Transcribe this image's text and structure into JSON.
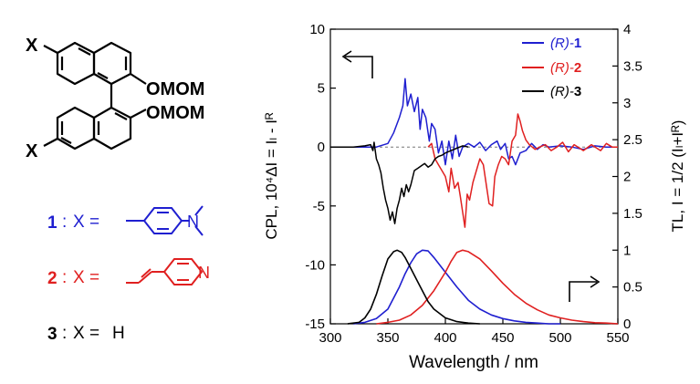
{
  "molecule": {
    "substituent_label": "X",
    "top_group": "OMOM",
    "bottom_group": "OMOM"
  },
  "compounds": [
    {
      "number": "1",
      "prefix": ":",
      "x_eq": "X =",
      "color": "#1f1fd0",
      "substituent": "4-dimethylaminophenyl"
    },
    {
      "number": "2",
      "prefix": ":",
      "x_eq": "X =",
      "color": "#e02020",
      "substituent": "(E)-2-(4-pyridyl)vinyl",
      "ring_atom": "N"
    },
    {
      "number": "3",
      "prefix": ":",
      "x_eq": "X =",
      "color": "#000000",
      "substituent_text": "H"
    }
  ],
  "chart": {
    "xlabel": "Wavelength / nm",
    "ylabel_left": "CPL, 10⁴ΔI = Iₗ - Iᴿ",
    "ylabel_right": "TL, I = 1/2 (Iₗ+Iᴿ)",
    "legend": [
      {
        "prefix": "(R)-",
        "num": "1",
        "color": "#1f1fd0"
      },
      {
        "prefix": "(R)-",
        "num": "2",
        "color": "#e02020"
      },
      {
        "prefix": "(R)-",
        "num": "3",
        "color": "#000000"
      }
    ]
  },
  "chart_data": {
    "type": "line",
    "x_range": [
      300,
      550
    ],
    "x_ticks": [
      300,
      350,
      400,
      450,
      500,
      550
    ],
    "y_left_range": [
      -15,
      10
    ],
    "y_left_ticks": [
      -15,
      -10,
      -5,
      0,
      5,
      10
    ],
    "y_right_range": [
      0,
      4
    ],
    "y_right_ticks": [
      0,
      0.5,
      1,
      1.5,
      2,
      2.5,
      3,
      3.5,
      4
    ],
    "cpl_axis": "left",
    "tl_axis": "right",
    "series": [
      {
        "name": "(R)-1",
        "color": "#1f1fd0",
        "cpl": [
          [
            300,
            0
          ],
          [
            320,
            0
          ],
          [
            340,
            0
          ],
          [
            350,
            0.3
          ],
          [
            355,
            1.2
          ],
          [
            360,
            2.5
          ],
          [
            363,
            3.5
          ],
          [
            365,
            5.8
          ],
          [
            367,
            3.5
          ],
          [
            370,
            4.5
          ],
          [
            373,
            3
          ],
          [
            376,
            4.2
          ],
          [
            378,
            1.5
          ],
          [
            380,
            3.2
          ],
          [
            383,
            2.5
          ],
          [
            386,
            0.5
          ],
          [
            388,
            2
          ],
          [
            391,
            1.5
          ],
          [
            394,
            -0.5
          ],
          [
            397,
            0.5
          ],
          [
            400,
            -1.5
          ],
          [
            403,
            0.5
          ],
          [
            406,
            -1
          ],
          [
            409,
            1
          ],
          [
            412,
            -0.8
          ],
          [
            415,
            0
          ],
          [
            420,
            0.3
          ],
          [
            425,
            0
          ],
          [
            430,
            0.4
          ],
          [
            435,
            -0.3
          ],
          [
            440,
            0.2
          ],
          [
            445,
            0.5
          ],
          [
            448,
            -0.2
          ],
          [
            452,
            0.3
          ],
          [
            455,
            -1
          ],
          [
            458,
            -0.8
          ],
          [
            461,
            -1.5
          ],
          [
            465,
            -0.5
          ],
          [
            470,
            -0.3
          ],
          [
            475,
            0.3
          ],
          [
            480,
            -0.2
          ],
          [
            485,
            0.2
          ],
          [
            490,
            0
          ],
          [
            500,
            0.1
          ],
          [
            510,
            0
          ],
          [
            520,
            -0.2
          ],
          [
            530,
            0.1
          ],
          [
            540,
            0
          ],
          [
            550,
            0
          ]
        ],
        "tl": [
          [
            320,
            0
          ],
          [
            330,
            0.02
          ],
          [
            340,
            0.07
          ],
          [
            350,
            0.2
          ],
          [
            355,
            0.35
          ],
          [
            360,
            0.5
          ],
          [
            365,
            0.68
          ],
          [
            370,
            0.83
          ],
          [
            375,
            0.95
          ],
          [
            380,
            1.0
          ],
          [
            385,
            0.99
          ],
          [
            390,
            0.9
          ],
          [
            395,
            0.8
          ],
          [
            400,
            0.7
          ],
          [
            410,
            0.5
          ],
          [
            420,
            0.32
          ],
          [
            430,
            0.2
          ],
          [
            440,
            0.12
          ],
          [
            450,
            0.07
          ],
          [
            460,
            0.04
          ],
          [
            470,
            0.02
          ],
          [
            480,
            0.01
          ],
          [
            490,
            0
          ],
          [
            500,
            0
          ]
        ]
      },
      {
        "name": "(R)-2",
        "color": "#e02020",
        "cpl": [
          [
            385,
            0
          ],
          [
            388,
            0.3
          ],
          [
            391,
            -1
          ],
          [
            394,
            -1.5
          ],
          [
            397,
            -2
          ],
          [
            400,
            -2.5
          ],
          [
            403,
            -3.8
          ],
          [
            405,
            -1.8
          ],
          [
            408,
            -3.5
          ],
          [
            411,
            -3
          ],
          [
            413,
            -4.2
          ],
          [
            415,
            -5.5
          ],
          [
            417,
            -6.8
          ],
          [
            419,
            -4
          ],
          [
            421,
            -4.5
          ],
          [
            424,
            -3
          ],
          [
            427,
            -2
          ],
          [
            430,
            -1
          ],
          [
            433,
            -1.5
          ],
          [
            436,
            -3.5
          ],
          [
            438,
            -4.8
          ],
          [
            441,
            -5
          ],
          [
            443,
            -2.5
          ],
          [
            446,
            -1.5
          ],
          [
            449,
            -0.8
          ],
          [
            452,
            -1
          ],
          [
            455,
            -1.5
          ],
          [
            458,
            0.5
          ],
          [
            461,
            1
          ],
          [
            463,
            2.8
          ],
          [
            465,
            2.2
          ],
          [
            467,
            1.4
          ],
          [
            470,
            0.6
          ],
          [
            473,
            0.2
          ],
          [
            478,
            -0.2
          ],
          [
            482,
            0
          ],
          [
            487,
            0.2
          ],
          [
            492,
            -0.3
          ],
          [
            497,
            0
          ],
          [
            502,
            0.4
          ],
          [
            507,
            -0.4
          ],
          [
            512,
            0.2
          ],
          [
            520,
            -0.3
          ],
          [
            527,
            0.2
          ],
          [
            535,
            -0.3
          ],
          [
            540,
            0.3
          ],
          [
            545,
            0
          ],
          [
            550,
            0
          ]
        ],
        "tl": [
          [
            340,
            0
          ],
          [
            350,
            0.02
          ],
          [
            360,
            0.05
          ],
          [
            370,
            0.12
          ],
          [
            380,
            0.25
          ],
          [
            390,
            0.45
          ],
          [
            400,
            0.7
          ],
          [
            405,
            0.85
          ],
          [
            410,
            0.97
          ],
          [
            415,
            1.0
          ],
          [
            420,
            0.98
          ],
          [
            430,
            0.88
          ],
          [
            440,
            0.72
          ],
          [
            450,
            0.55
          ],
          [
            460,
            0.4
          ],
          [
            470,
            0.28
          ],
          [
            480,
            0.19
          ],
          [
            490,
            0.12
          ],
          [
            500,
            0.08
          ],
          [
            510,
            0.05
          ],
          [
            520,
            0.03
          ],
          [
            530,
            0.015
          ],
          [
            540,
            0.01
          ],
          [
            550,
            0
          ]
        ]
      },
      {
        "name": "(R)-3",
        "color": "#000000",
        "cpl": [
          [
            300,
            0
          ],
          [
            320,
            0
          ],
          [
            330,
            0.1
          ],
          [
            335,
            0.2
          ],
          [
            337,
            -0.3
          ],
          [
            338,
            0.4
          ],
          [
            340,
            -1
          ],
          [
            342,
            -1.5
          ],
          [
            344,
            -2.2
          ],
          [
            346,
            -3.5
          ],
          [
            348,
            -4.5
          ],
          [
            350,
            -5.2
          ],
          [
            352,
            -6.2
          ],
          [
            354,
            -5.5
          ],
          [
            356,
            -6.5
          ],
          [
            358,
            -5.2
          ],
          [
            360,
            -4.5
          ],
          [
            362,
            -3.5
          ],
          [
            364,
            -4.2
          ],
          [
            366,
            -3.2
          ],
          [
            368,
            -3.8
          ],
          [
            370,
            -3.2
          ],
          [
            373,
            -2
          ],
          [
            376,
            -1.8
          ],
          [
            379,
            -1.6
          ],
          [
            382,
            -1.4
          ],
          [
            385,
            -1.7
          ],
          [
            388,
            -1.5
          ],
          [
            391,
            -1
          ],
          [
            394,
            -0.8
          ],
          [
            397,
            -0.7
          ],
          [
            400,
            -0.5
          ],
          [
            405,
            -0.3
          ],
          [
            410,
            -0.1
          ],
          [
            415,
            0.1
          ],
          [
            420,
            0
          ]
        ],
        "tl": [
          [
            315,
            0
          ],
          [
            325,
            0.02
          ],
          [
            330,
            0.08
          ],
          [
            335,
            0.2
          ],
          [
            340,
            0.4
          ],
          [
            345,
            0.65
          ],
          [
            350,
            0.88
          ],
          [
            355,
            0.98
          ],
          [
            358,
            1.0
          ],
          [
            362,
            0.97
          ],
          [
            365,
            0.9
          ],
          [
            370,
            0.75
          ],
          [
            375,
            0.6
          ],
          [
            380,
            0.45
          ],
          [
            385,
            0.3
          ],
          [
            390,
            0.2
          ],
          [
            400,
            0.08
          ],
          [
            410,
            0.03
          ],
          [
            420,
            0.01
          ],
          [
            430,
            0
          ]
        ]
      }
    ]
  }
}
